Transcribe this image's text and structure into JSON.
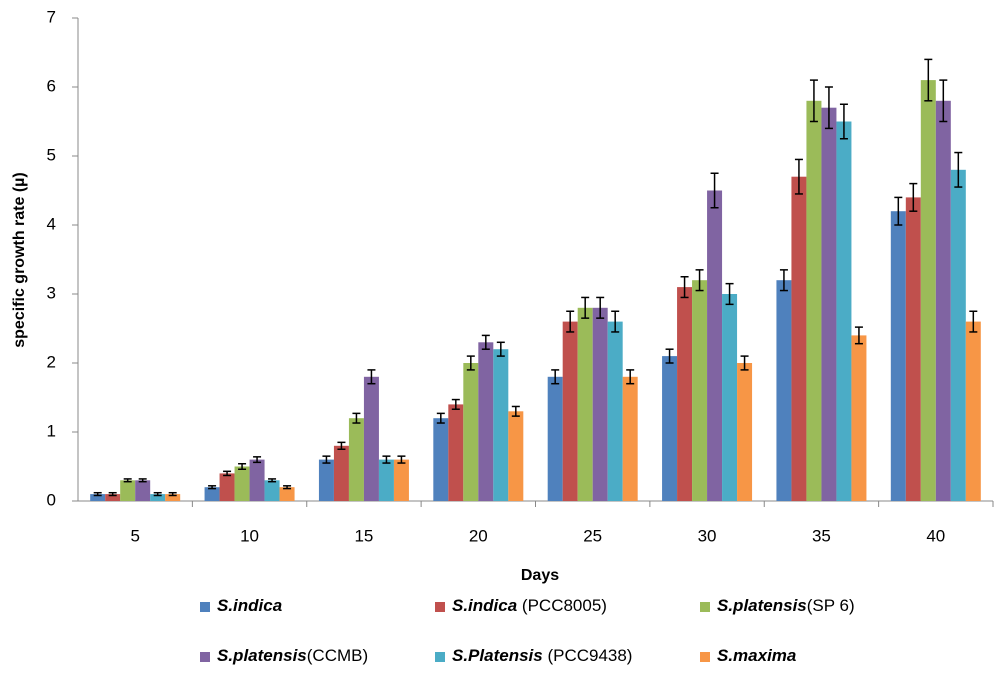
{
  "chart_data": {
    "type": "bar",
    "x_label": "Days",
    "y_label": "specific growth rate (µ)",
    "categories": [
      "5",
      "10",
      "15",
      "20",
      "25",
      "30",
      "35",
      "40"
    ],
    "ylim": [
      0,
      7
    ],
    "yticks": [
      0,
      1,
      2,
      3,
      4,
      5,
      6,
      7
    ],
    "series": [
      {
        "name": "S.indica",
        "color": "#4f81bd",
        "values": [
          0.1,
          0.2,
          0.6,
          1.2,
          1.8,
          2.1,
          3.2,
          4.2
        ],
        "errors": [
          0.02,
          0.02,
          0.05,
          0.07,
          0.1,
          0.1,
          0.15,
          0.2
        ]
      },
      {
        "name": "S.indica (PCC8005)",
        "color": "#c0504d",
        "values": [
          0.1,
          0.4,
          0.8,
          1.4,
          2.6,
          3.1,
          4.7,
          4.4
        ],
        "errors": [
          0.02,
          0.03,
          0.05,
          0.07,
          0.15,
          0.15,
          0.25,
          0.2
        ]
      },
      {
        "name": "S.platensis(SP 6)",
        "color": "#9bbb59",
        "values": [
          0.3,
          0.5,
          1.2,
          2.0,
          2.8,
          3.2,
          5.8,
          6.1
        ],
        "errors": [
          0.02,
          0.04,
          0.07,
          0.1,
          0.15,
          0.15,
          0.3,
          0.3
        ]
      },
      {
        "name": "S.platensis(CCMB)",
        "color": "#8064a2",
        "values": [
          0.3,
          0.6,
          1.8,
          2.3,
          2.8,
          4.5,
          5.7,
          5.8
        ],
        "errors": [
          0.02,
          0.04,
          0.1,
          0.1,
          0.15,
          0.25,
          0.3,
          0.3
        ]
      },
      {
        "name": "S.Platensis (PCC9438)",
        "color": "#4bacc6",
        "values": [
          0.1,
          0.3,
          0.6,
          2.2,
          2.6,
          3.0,
          5.5,
          4.8
        ],
        "errors": [
          0.02,
          0.02,
          0.05,
          0.1,
          0.15,
          0.15,
          0.25,
          0.25
        ]
      },
      {
        "name": "S.maxima",
        "color": "#f79646",
        "values": [
          0.1,
          0.2,
          0.6,
          1.3,
          1.8,
          2.0,
          2.4,
          2.6
        ],
        "errors": [
          0.02,
          0.02,
          0.05,
          0.07,
          0.1,
          0.1,
          0.12,
          0.15
        ]
      }
    ],
    "legend": "bottom"
  }
}
